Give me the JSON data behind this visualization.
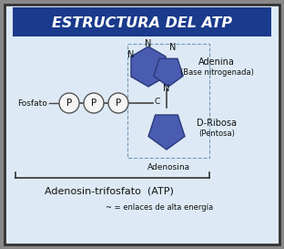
{
  "title": "ESTRUCTURA DEL ATP",
  "title_bg": "#1a3a8c",
  "title_color": "#ffffff",
  "bg_color": "#ddeaf5",
  "outer_bg": "#888888",
  "border_color": "#222222",
  "molecule_color": "#4a5cb0",
  "circle_edge": "#555555",
  "circle_fill": "#f5f5f5",
  "text_color": "#111111",
  "label_adenina": "Adenina",
  "label_base": "(Base nitrogenada)",
  "label_ribosa": "D-Ribosa",
  "label_pentosa": "(Pentosa)",
  "label_fosfato": "Fosfato",
  "label_adenosina": "Adenosina",
  "label_atp": "Adenosin-trifosfato  (ATP)",
  "label_enlaces": "~ = enlaces de alta energía"
}
